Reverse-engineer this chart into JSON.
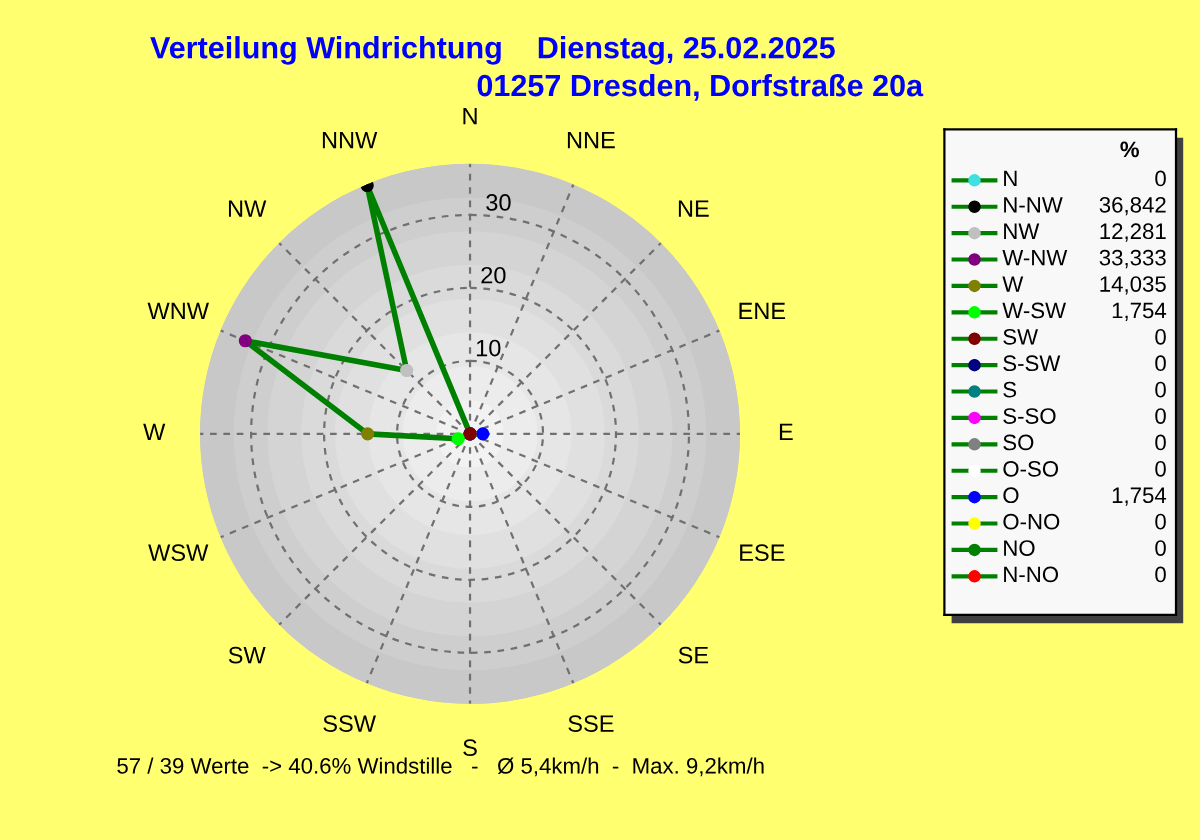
{
  "chart_data": [
    {
      "type": "radar",
      "title": "Verteilung Windrichtung    Dienstag, 25.02.2025",
      "subtitle": "01257 Dresden, Dorfstraße 20a",
      "annotations": [
        "57 / 39 Werte  -> 40.6% Windstille   -   Ø 5,4km/h  -  Max. 9,2km/h"
      ],
      "categories": [
        "N",
        "NNE",
        "NE",
        "ENE",
        "E",
        "ESE",
        "SE",
        "SSE",
        "S",
        "SSW",
        "SW",
        "WSW",
        "W",
        "WNW",
        "NW",
        "NNW"
      ],
      "ylim": [
        0,
        37
      ],
      "yticks": [
        10,
        20,
        30
      ],
      "grid": true,
      "marker": "circle",
      "series": [
        {
          "color": "#008000",
          "values": [
            0,
            0,
            0,
            0,
            1.754,
            0,
            0,
            0,
            0,
            0,
            0,
            1.754,
            14.035,
            33.333,
            12.281,
            36.842
          ],
          "colors": [
            "#40e0e0",
            "#ff0000",
            "#008000",
            "#ffff00",
            "#0000ff",
            "#ffffff",
            "#808080",
            "#ff00ff",
            "#008080",
            "#000080",
            "#800000",
            "#00ff00",
            "#808000",
            "#800080",
            "#c0c0c0",
            "#000000"
          ]
        }
      ]
    },
    {
      "type": "other",
      "title": "%",
      "color": "#008000",
      "categories": [
        "N",
        "N-NW",
        "NW",
        "W-NW",
        "W",
        "W-SW",
        "SW",
        "S-SW",
        "S",
        "S-SO",
        "SO",
        "O-SO",
        "O",
        "O-NO",
        "NO",
        "N-NO"
      ],
      "value_labels": [
        "0",
        "36,842",
        "12,281",
        "33,333",
        "14,035",
        "1,754",
        "0",
        "0",
        "0",
        "0",
        "0",
        "0",
        "1,754",
        "0",
        "0",
        "0"
      ],
      "colors": [
        "#40e0e0",
        "#000000",
        "#c0c0c0",
        "#800080",
        "#808000",
        "#00ff00",
        "#800000",
        "#000080",
        "#008080",
        "#ff00ff",
        "#808080",
        "#ffffff",
        "#0000ff",
        "#ffff00",
        "#008000",
        "#ff0000"
      ]
    }
  ]
}
